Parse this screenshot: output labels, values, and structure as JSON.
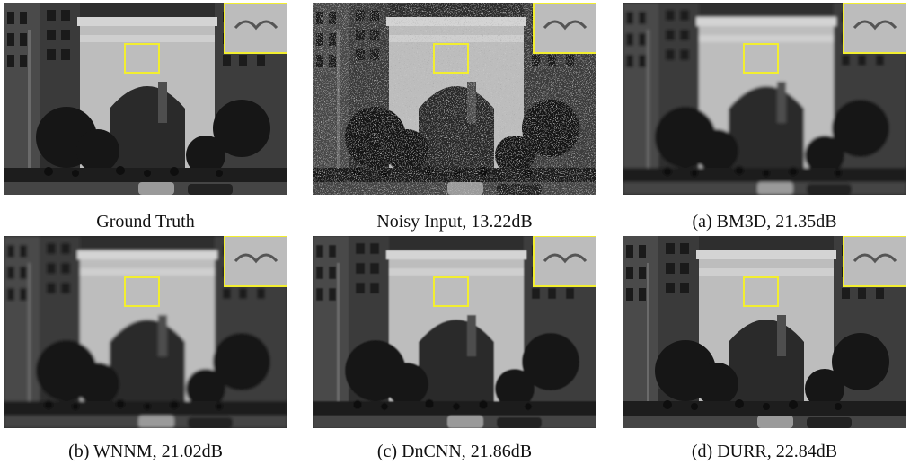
{
  "figure": {
    "panels": [
      {
        "id": "gt",
        "caption": "Ground Truth"
      },
      {
        "id": "noisy",
        "caption": "Noisy Input, 13.22dB"
      },
      {
        "id": "bm3d",
        "caption": "(a) BM3D, 21.35dB"
      },
      {
        "id": "wnnm",
        "caption": "(b) WNNM, 21.02dB"
      },
      {
        "id": "dncnn",
        "caption": "(c) DnCNN, 21.86dB"
      },
      {
        "id": "durr",
        "caption": "(d) DURR, 22.84dB"
      }
    ],
    "highlight_color": "#f2ee30"
  }
}
